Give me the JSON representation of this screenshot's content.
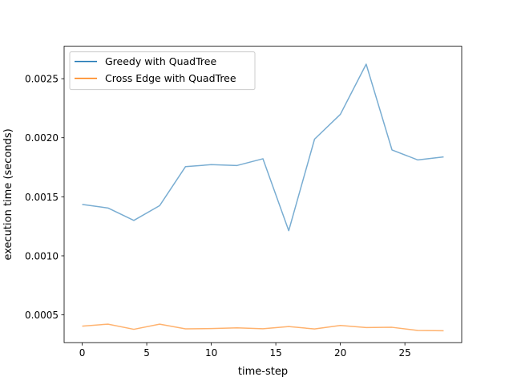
{
  "chart_data": {
    "type": "line",
    "title": "",
    "xlabel": "time-step",
    "ylabel": "execution time (seconds)",
    "xlim": [
      -1.4,
      29.4
    ],
    "ylim": [
      0.000265,
      0.002775
    ],
    "x_ticks": [
      0,
      5,
      10,
      15,
      20,
      25
    ],
    "x_tick_labels": [
      "0",
      "5",
      "10",
      "15",
      "20",
      "25"
    ],
    "y_ticks": [
      0.0005,
      0.001,
      0.0015,
      0.002,
      0.0025
    ],
    "y_tick_labels": [
      "0.0005",
      "0.0010",
      "0.0015",
      "0.0020",
      "0.0025"
    ],
    "grid": false,
    "legend_position": "top-left",
    "x": [
      0,
      2,
      4,
      6,
      8,
      10,
      12,
      14,
      16,
      18,
      20,
      22,
      24,
      26,
      28
    ],
    "series": [
      {
        "name": "Greedy with QuadTree",
        "color": "#1f77b4",
        "values": [
          0.001435,
          0.001405,
          0.0013,
          0.001425,
          0.001755,
          0.001772,
          0.001765,
          0.001822,
          0.001213,
          0.001988,
          0.002198,
          0.002623,
          0.001897,
          0.001812,
          0.001838
        ]
      },
      {
        "name": "Cross Edge with QuadTree",
        "color": "#ff7f0e",
        "values": [
          0.000405,
          0.000422,
          0.000378,
          0.000422,
          0.000382,
          0.000384,
          0.00039,
          0.000383,
          0.000401,
          0.000381,
          0.000411,
          0.000393,
          0.000395,
          0.000368,
          0.000366
        ]
      }
    ]
  }
}
